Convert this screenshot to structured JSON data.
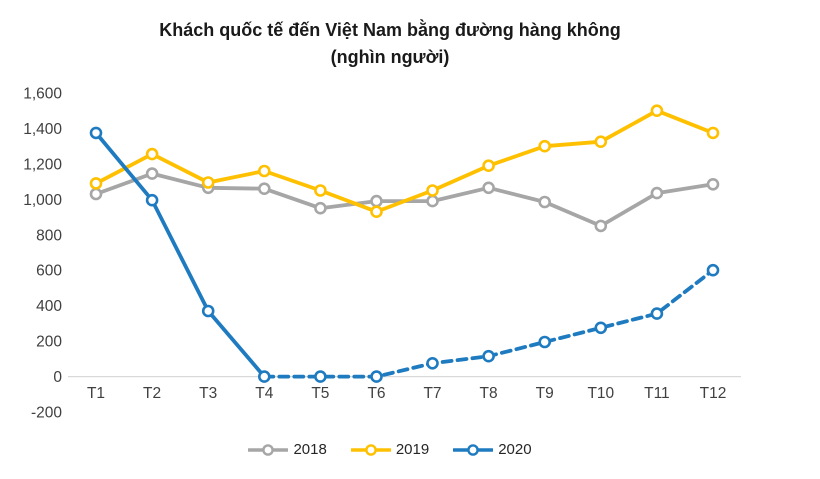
{
  "title": "Khách quốc tế đến Việt Nam bằng đường hàng không",
  "subtitle": "(nghìn người)",
  "chart_data": {
    "type": "line",
    "title": "Khách quốc tế đến Việt Nam bằng đường hàng không",
    "subtitle": "(nghìn người)",
    "categories": [
      "T1",
      "T2",
      "T3",
      "T4",
      "T5",
      "T6",
      "T7",
      "T8",
      "T9",
      "T10",
      "T11",
      "T12"
    ],
    "series": [
      {
        "name": "2018",
        "color": "#A6A6A6",
        "marker": "open-circle",
        "line_style": "solid",
        "values": [
          1030,
          1145,
          1065,
          1060,
          950,
          990,
          990,
          1065,
          985,
          850,
          1035,
          1085
        ]
      },
      {
        "name": "2019",
        "color": "#FFC000",
        "marker": "open-circle",
        "line_style": "solid",
        "values": [
          1090,
          1255,
          1095,
          1160,
          1050,
          930,
          1050,
          1190,
          1300,
          1325,
          1500,
          1375
        ]
      },
      {
        "name": "2020",
        "color": "#1F7BC0",
        "marker": "open-circle",
        "line_style": "solid-then-dashed",
        "dashed_from_index": 3,
        "values": [
          1375,
          995,
          370,
          0,
          0,
          0,
          75,
          115,
          195,
          275,
          355,
          600
        ]
      }
    ],
    "ylim": [
      -200,
      1600
    ],
    "ytick_step": 200,
    "yticks": [
      "1,600",
      "1,400",
      "1,200",
      "1,000",
      "800",
      "600",
      "400",
      "200",
      "0",
      "-200"
    ],
    "xlabel": "",
    "ylabel": "",
    "grid": false,
    "legend_position": "bottom",
    "axis_color": "#D9D9D9",
    "tick_label_color": "#404040"
  }
}
